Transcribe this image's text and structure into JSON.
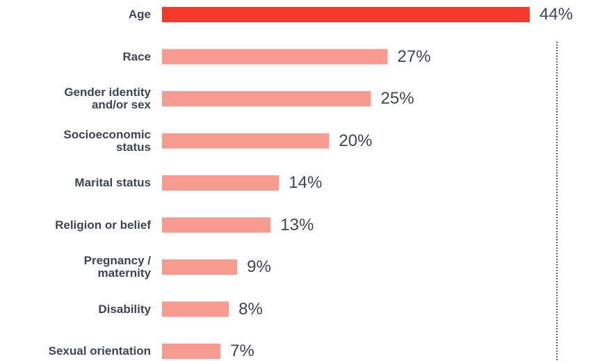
{
  "chart_data": {
    "type": "bar",
    "orientation": "horizontal",
    "categories": [
      "Age",
      "Race",
      "Gender identity\nand/or sex",
      "Socioeconomic\nstatus",
      "Marital status",
      "Religion or belief",
      "Pregnancy /\nmaternity",
      "Disability",
      "Sexual orientation"
    ],
    "values": [
      44,
      27,
      25,
      20,
      14,
      13,
      9,
      8,
      7
    ],
    "value_labels": [
      "44%",
      "27%",
      "25%",
      "20%",
      "14%",
      "13%",
      "9%",
      "8%",
      "7%"
    ],
    "colors": [
      "#f23a2a",
      "#f79a90",
      "#f79a90",
      "#f79a90",
      "#f79a90",
      "#f79a90",
      "#f79a90",
      "#f79a90",
      "#f79a90"
    ]
  }
}
